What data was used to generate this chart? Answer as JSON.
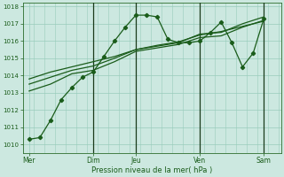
{
  "xlabel": "Pression niveau de la mer( hPa )",
  "ylim": [
    1009.5,
    1018.2
  ],
  "yticks": [
    1010,
    1011,
    1012,
    1013,
    1014,
    1015,
    1016,
    1017,
    1018
  ],
  "day_labels": [
    "Mer",
    "Dim",
    "Jeu",
    "Ven",
    "Sam"
  ],
  "day_positions": [
    0,
    3,
    5,
    8,
    11
  ],
  "vline_positions": [
    3,
    5,
    8,
    11
  ],
  "bg_color": "#cce8e0",
  "grid_color": "#99ccbb",
  "line_color": "#1a5c1a",
  "marker_color": "#1a5c1a",
  "line1_x": [
    0,
    0.5,
    1.0,
    1.5,
    2.0,
    2.5,
    3.0,
    3.5,
    4.0,
    4.5,
    5.0,
    5.5,
    6.0,
    6.5,
    7.0,
    7.5,
    8.0,
    8.5,
    9.0,
    9.5,
    10.0,
    10.5,
    11.0
  ],
  "line1_y": [
    1010.3,
    1010.4,
    1011.4,
    1012.6,
    1013.3,
    1013.9,
    1014.2,
    1015.1,
    1016.0,
    1016.8,
    1017.5,
    1017.5,
    1017.4,
    1016.1,
    1015.9,
    1015.9,
    1016.0,
    1016.5,
    1017.1,
    1015.9,
    1014.5,
    1015.3,
    1017.3
  ],
  "line2_x": [
    0,
    1.0,
    2.0,
    3.0,
    4.0,
    5.0,
    6.0,
    7.0,
    8.0,
    9.0,
    10.0,
    11.0
  ],
  "line2_y": [
    1013.1,
    1013.5,
    1014.1,
    1014.3,
    1014.8,
    1015.4,
    1015.6,
    1015.8,
    1016.2,
    1016.3,
    1016.8,
    1017.2
  ],
  "line3_x": [
    0,
    1.0,
    2.0,
    3.0,
    4.0,
    5.0,
    6.0,
    7.0,
    8.0,
    9.0,
    10.0,
    11.0
  ],
  "line3_y": [
    1013.5,
    1013.9,
    1014.3,
    1014.55,
    1015.0,
    1015.5,
    1015.7,
    1015.9,
    1016.4,
    1016.5,
    1017.0,
    1017.4
  ],
  "line4_x": [
    0,
    1.0,
    2.0,
    3.0,
    4.0,
    5.0,
    6.0,
    7.0,
    8.0,
    9.0,
    10.0,
    11.0
  ],
  "line4_y": [
    1013.8,
    1014.2,
    1014.5,
    1014.8,
    1015.1,
    1015.5,
    1015.75,
    1015.95,
    1016.35,
    1016.55,
    1016.85,
    1017.15
  ],
  "xlim": [
    -0.3,
    11.8
  ],
  "figsize": [
    3.2,
    2.0
  ],
  "dpi": 100
}
